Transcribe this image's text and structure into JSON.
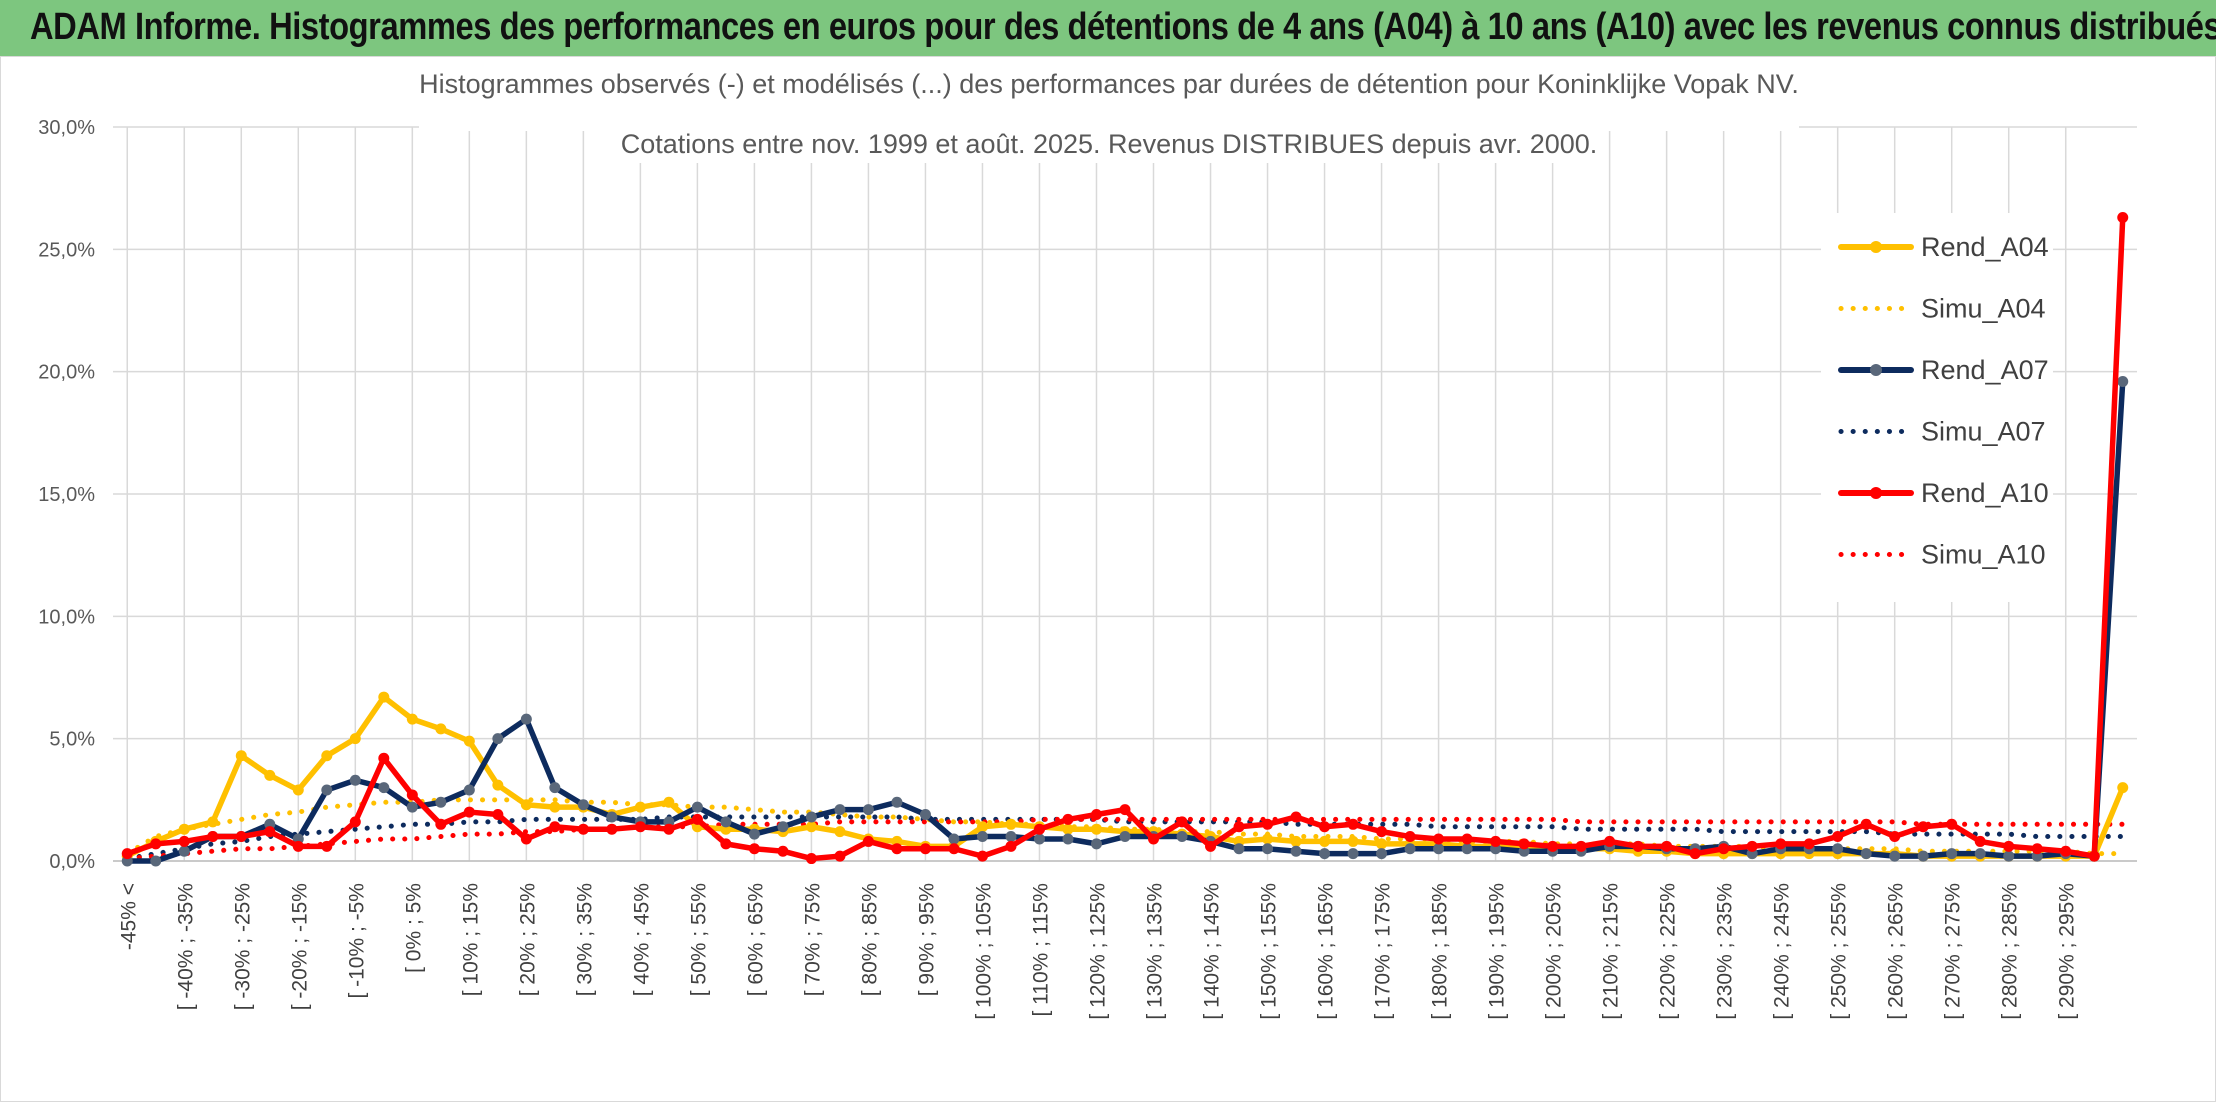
{
  "banner": {
    "title": "ADAM Informe. Histogrammes des performances en euros pour des détentions de 4 ans (A04) à 10 ans (A10) avec les revenus connus distribués"
  },
  "chart_data": {
    "type": "line",
    "title": "Histogrammes observés (-) et modélisés (...) des performances par durées de détention pour Koninklijke Vopak NV.",
    "subtitle": "Cotations entre nov. 1999 et août. 2025. Revenus DISTRIBUES depuis avr. 2000.",
    "xlabel": "",
    "ylabel": "",
    "ylim": [
      0,
      30
    ],
    "y_ticks": [
      "0,0%",
      "5,0%",
      "10,0%",
      "15,0%",
      "20,0%",
      "25,0%",
      "30,0%"
    ],
    "grid": true,
    "legend_position": "right",
    "categories": [
      "-45% <",
      "[ -45% ; -40%",
      "[ -40% ; -35%",
      "[ -35% ; -30%",
      "[ -30% ; -25%",
      "[ -25% ; -20%",
      "[ -20% ; -15%",
      "[ -15% ; -10%",
      "[ -10% ; -5%",
      "[ -5% ; 0%",
      "[ 0% ; 5%",
      "[ 5% ; 10%",
      "[ 10% ; 15%",
      "[ 15% ; 20%",
      "[ 20% ; 25%",
      "[ 25% ; 30%",
      "[ 30% ; 35%",
      "[ 35% ; 40%",
      "[ 40% ; 45%",
      "[ 45% ; 50%",
      "[ 50% ; 55%",
      "[ 55% ; 60%",
      "[ 60% ; 65%",
      "[ 65% ; 70%",
      "[ 70% ; 75%",
      "[ 75% ; 80%",
      "[ 80% ; 85%",
      "[ 85% ; 90%",
      "[ 90% ; 95%",
      "[ 95% ; 100%",
      "[ 100% ; 105%",
      "[ 105% ; 110%",
      "[ 110% ; 115%",
      "[ 115% ; 120%",
      "[ 120% ; 125%",
      "[ 125% ; 130%",
      "[ 130% ; 135%",
      "[ 135% ; 140%",
      "[ 140% ; 145%",
      "[ 145% ; 150%",
      "[ 150% ; 155%",
      "[ 155% ; 160%",
      "[ 160% ; 165%",
      "[ 165% ; 170%",
      "[ 170% ; 175%",
      "[ 175% ; 180%",
      "[ 180% ; 185%",
      "[ 185% ; 190%",
      "[ 190% ; 195%",
      "[ 195% ; 200%",
      "[ 200% ; 205%",
      "[ 205% ; 210%",
      "[ 210% ; 215%",
      "[ 215% ; 220%",
      "[ 220% ; 225%",
      "[ 225% ; 230%",
      "[ 230% ; 235%",
      "[ 235% ; 240%",
      "[ 240% ; 245%",
      "[ 245% ; 250%",
      "[ 250% ; 255%",
      "[ 255% ; 260%",
      "[ 260% ; 265%",
      "[ 265% ; 270%",
      "[ 270% ; 275%",
      "[ 275% ; 280%",
      "[ 280% ; 285%",
      "[ 285% ; 290%",
      "[ 290% ; 295%",
      "[ 295% ; 300%",
      "300% >"
    ],
    "visible_tick_labels": [
      "-45% <",
      "[ -40% ; -35%",
      "[ -30% ; -25%",
      "[ -20% ; -15%",
      "[ -10% ; -5%",
      "[ 0% ; 5%",
      "[ 10% ; 15%",
      "[ 20% ; 25%",
      "[ 30% ; 35%",
      "[ 40% ; 45%",
      "[ 50% ; 55%",
      "[ 60% ; 65%",
      "[ 70% ; 75%",
      "[ 80% ; 85%",
      "[ 90% ; 95%",
      "[ 100% ; 105%",
      "[ 110% ; 115%",
      "[ 120% ; 125%",
      "[ 130% ; 135%",
      "[ 140% ; 145%",
      "[ 150% ; 155%",
      "[ 160% ; 165%",
      "[ 170% ; 175%",
      "[ 180% ; 185%",
      "[ 190% ; 195%",
      "[ 200% ; 205%",
      "[ 210% ; 215%",
      "[ 220% ; 225%",
      "[ 230% ; 235%",
      "[ 240% ; 245%",
      "[ 250% ; 255%",
      "[ 260% ; 265%",
      "[ 270% ; 275%",
      "[ 280% ; 285%",
      "[ 290% ; 295%"
    ],
    "series": [
      {
        "name": "Rend_A04",
        "color": "#ffc000",
        "style": "solid",
        "markers": true,
        "values": [
          0.2,
          0.8,
          1.3,
          1.6,
          4.3,
          3.5,
          2.9,
          4.3,
          5.0,
          6.7,
          5.8,
          5.4,
          4.9,
          3.1,
          2.3,
          2.2,
          2.2,
          1.9,
          2.2,
          2.4,
          1.4,
          1.3,
          1.3,
          1.2,
          1.4,
          1.2,
          0.9,
          0.8,
          0.6,
          0.6,
          1.4,
          1.5,
          1.4,
          1.3,
          1.3,
          1.2,
          1.2,
          1.1,
          1.0,
          0.8,
          0.9,
          0.8,
          0.8,
          0.8,
          0.7,
          0.7,
          0.7,
          0.6,
          0.6,
          0.5,
          0.5,
          0.5,
          0.5,
          0.4,
          0.4,
          0.3,
          0.3,
          0.3,
          0.3,
          0.3,
          0.3,
          0.3,
          0.3,
          0.2,
          0.2,
          0.2,
          0.2,
          0.2,
          0.2,
          0.2,
          3.0
        ]
      },
      {
        "name": "Simu_A04",
        "color": "#ffc000",
        "style": "dotted",
        "markers": false,
        "values": [
          0.3,
          1.0,
          1.3,
          1.5,
          1.7,
          1.9,
          2.0,
          2.2,
          2.3,
          2.4,
          2.4,
          2.5,
          2.5,
          2.5,
          2.5,
          2.5,
          2.4,
          2.4,
          2.3,
          2.3,
          2.2,
          2.2,
          2.1,
          2.0,
          2.0,
          1.9,
          1.8,
          1.8,
          1.7,
          1.6,
          1.6,
          1.5,
          1.5,
          1.4,
          1.4,
          1.3,
          1.3,
          1.2,
          1.2,
          1.1,
          1.1,
          1.0,
          1.0,
          1.0,
          0.9,
          0.9,
          0.9,
          0.8,
          0.8,
          0.8,
          0.7,
          0.7,
          0.7,
          0.7,
          0.6,
          0.6,
          0.6,
          0.6,
          0.5,
          0.5,
          0.5,
          0.5,
          0.5,
          0.4,
          0.4,
          0.4,
          0.4,
          0.4,
          0.4,
          0.3,
          0.3
        ]
      },
      {
        "name": "Rend_A07",
        "color": "#0d2b5e",
        "marker_color": "#59677a",
        "style": "solid",
        "markers": true,
        "values": [
          0.0,
          0.0,
          0.4,
          1.0,
          1.0,
          1.5,
          0.9,
          2.9,
          3.3,
          3.0,
          2.2,
          2.4,
          2.9,
          5.0,
          5.8,
          3.0,
          2.3,
          1.8,
          1.6,
          1.6,
          2.2,
          1.6,
          1.1,
          1.4,
          1.8,
          2.1,
          2.1,
          2.4,
          1.9,
          0.9,
          1.0,
          1.0,
          0.9,
          0.9,
          0.7,
          1.0,
          1.0,
          1.0,
          0.8,
          0.5,
          0.5,
          0.4,
          0.3,
          0.3,
          0.3,
          0.5,
          0.5,
          0.5,
          0.5,
          0.4,
          0.4,
          0.4,
          0.6,
          0.6,
          0.5,
          0.5,
          0.6,
          0.3,
          0.5,
          0.5,
          0.5,
          0.3,
          0.2,
          0.2,
          0.3,
          0.3,
          0.2,
          0.2,
          0.3,
          0.2,
          19.6
        ]
      },
      {
        "name": "Simu_A07",
        "color": "#0d2b5e",
        "style": "dotted",
        "markers": false,
        "values": [
          0.1,
          0.3,
          0.5,
          0.7,
          0.8,
          1.0,
          1.1,
          1.2,
          1.3,
          1.4,
          1.5,
          1.5,
          1.6,
          1.6,
          1.7,
          1.7,
          1.7,
          1.7,
          1.7,
          1.8,
          1.8,
          1.8,
          1.8,
          1.8,
          1.8,
          1.8,
          1.8,
          1.8,
          1.7,
          1.7,
          1.7,
          1.7,
          1.7,
          1.7,
          1.7,
          1.6,
          1.6,
          1.6,
          1.6,
          1.6,
          1.6,
          1.5,
          1.5,
          1.5,
          1.5,
          1.5,
          1.4,
          1.4,
          1.4,
          1.4,
          1.4,
          1.3,
          1.3,
          1.3,
          1.3,
          1.3,
          1.2,
          1.2,
          1.2,
          1.2,
          1.2,
          1.2,
          1.1,
          1.1,
          1.1,
          1.1,
          1.1,
          1.0,
          1.0,
          1.0,
          1.0
        ]
      },
      {
        "name": "Rend_A10",
        "color": "#ff0000",
        "style": "solid",
        "markers": true,
        "values": [
          0.3,
          0.7,
          0.8,
          1.0,
          1.0,
          1.2,
          0.6,
          0.6,
          1.6,
          4.2,
          2.7,
          1.5,
          2.0,
          1.9,
          0.9,
          1.4,
          1.3,
          1.3,
          1.4,
          1.3,
          1.7,
          0.7,
          0.5,
          0.4,
          0.1,
          0.2,
          0.8,
          0.5,
          0.5,
          0.5,
          0.2,
          0.6,
          1.3,
          1.7,
          1.9,
          2.1,
          0.9,
          1.6,
          0.6,
          1.4,
          1.5,
          1.8,
          1.4,
          1.5,
          1.2,
          1.0,
          0.9,
          0.9,
          0.8,
          0.7,
          0.6,
          0.6,
          0.8,
          0.6,
          0.6,
          0.3,
          0.5,
          0.6,
          0.7,
          0.7,
          1.0,
          1.5,
          1.0,
          1.4,
          1.5,
          0.8,
          0.6,
          0.5,
          0.4,
          0.2,
          26.3
        ]
      },
      {
        "name": "Simu_A10",
        "color": "#ff0000",
        "style": "dotted",
        "markers": false,
        "values": [
          0.1,
          0.2,
          0.3,
          0.4,
          0.5,
          0.5,
          0.6,
          0.7,
          0.8,
          0.9,
          0.9,
          1.0,
          1.1,
          1.1,
          1.2,
          1.2,
          1.3,
          1.3,
          1.4,
          1.4,
          1.4,
          1.5,
          1.5,
          1.5,
          1.5,
          1.6,
          1.6,
          1.6,
          1.6,
          1.6,
          1.6,
          1.6,
          1.7,
          1.7,
          1.7,
          1.7,
          1.7,
          1.7,
          1.7,
          1.7,
          1.7,
          1.7,
          1.7,
          1.7,
          1.7,
          1.7,
          1.7,
          1.7,
          1.7,
          1.7,
          1.7,
          1.6,
          1.6,
          1.6,
          1.6,
          1.6,
          1.6,
          1.6,
          1.6,
          1.6,
          1.6,
          1.6,
          1.6,
          1.5,
          1.5,
          1.5,
          1.5,
          1.5,
          1.5,
          1.5,
          1.5
        ]
      }
    ]
  }
}
